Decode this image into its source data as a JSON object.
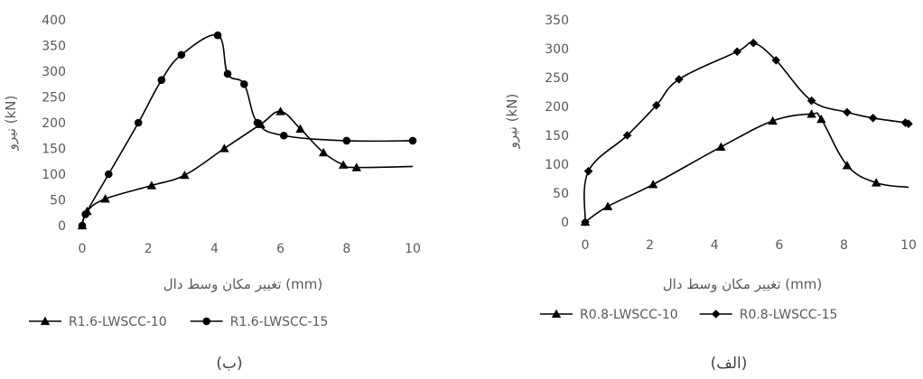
{
  "chart_data": [
    {
      "id": "b",
      "type": "line",
      "caption": "(ب)",
      "xlabel": "تغییر مکان وسط دال (mm)",
      "ylabel": "نیرو (kN)",
      "xlim": [
        0,
        10
      ],
      "ylim": [
        0,
        400
      ],
      "xticks": [
        0,
        2,
        4,
        6,
        8,
        10
      ],
      "yticks": [
        0,
        50,
        100,
        150,
        200,
        250,
        300,
        350,
        400
      ],
      "legend": "bottom",
      "grid": false,
      "series": [
        {
          "name": "R1.6-LWSCC-10",
          "marker": "triangle",
          "color": "#000000",
          "points": [
            [
              0,
              0
            ],
            [
              0.15,
              28
            ],
            [
              0.7,
              52
            ],
            [
              2.1,
              78
            ],
            [
              3.1,
              98
            ],
            [
              4.3,
              150
            ],
            [
              5.4,
              197
            ],
            [
              6.0,
              222
            ],
            [
              6.6,
              188
            ],
            [
              7.3,
              142
            ],
            [
              7.9,
              118
            ],
            [
              8.3,
              113
            ],
            [
              10,
              115
            ]
          ]
        },
        {
          "name": "R1.6-LWSCC-15",
          "marker": "circle",
          "color": "#000000",
          "points": [
            [
              0,
              0
            ],
            [
              0.1,
              22
            ],
            [
              0.8,
              100
            ],
            [
              1.7,
              200
            ],
            [
              2.4,
              283
            ],
            [
              3.0,
              332
            ],
            [
              4.1,
              370
            ],
            [
              4.4,
              295
            ],
            [
              4.9,
              275
            ],
            [
              5.3,
              200
            ],
            [
              6.1,
              175
            ],
            [
              8.0,
              165
            ],
            [
              10,
              165
            ]
          ]
        }
      ]
    },
    {
      "id": "alef",
      "type": "line",
      "caption": "(الف)",
      "xlabel": "تغییر مکان وسط دال (mm)",
      "ylabel": "نیرو (kN)",
      "xlim": [
        0,
        10
      ],
      "ylim": [
        0,
        350
      ],
      "xticks": [
        0,
        2,
        4,
        6,
        8,
        10
      ],
      "yticks": [
        0,
        50,
        100,
        150,
        200,
        250,
        300,
        350
      ],
      "legend": "bottom",
      "grid": false,
      "series": [
        {
          "name": "R0.8-LWSCC-10",
          "marker": "triangle",
          "color": "#000000",
          "points": [
            [
              0,
              0
            ],
            [
              0.7,
              27
            ],
            [
              2.1,
              65
            ],
            [
              4.2,
              130
            ],
            [
              5.8,
              175
            ],
            [
              7.0,
              187
            ],
            [
              7.3,
              178
            ],
            [
              8.1,
              98
            ],
            [
              9.0,
              68
            ],
            [
              10,
              60
            ]
          ]
        },
        {
          "name": "R0.8-LWSCC-15",
          "marker": "diamond",
          "color": "#000000",
          "points": [
            [
              0,
              0
            ],
            [
              0.1,
              88
            ],
            [
              1.3,
              150
            ],
            [
              2.2,
              202
            ],
            [
              2.9,
              247
            ],
            [
              4.7,
              295
            ],
            [
              5.2,
              310
            ],
            [
              5.9,
              280
            ],
            [
              7.0,
              210
            ],
            [
              8.1,
              190
            ],
            [
              8.9,
              180
            ],
            [
              9.9,
              172
            ],
            [
              10,
              170
            ]
          ]
        }
      ]
    }
  ]
}
